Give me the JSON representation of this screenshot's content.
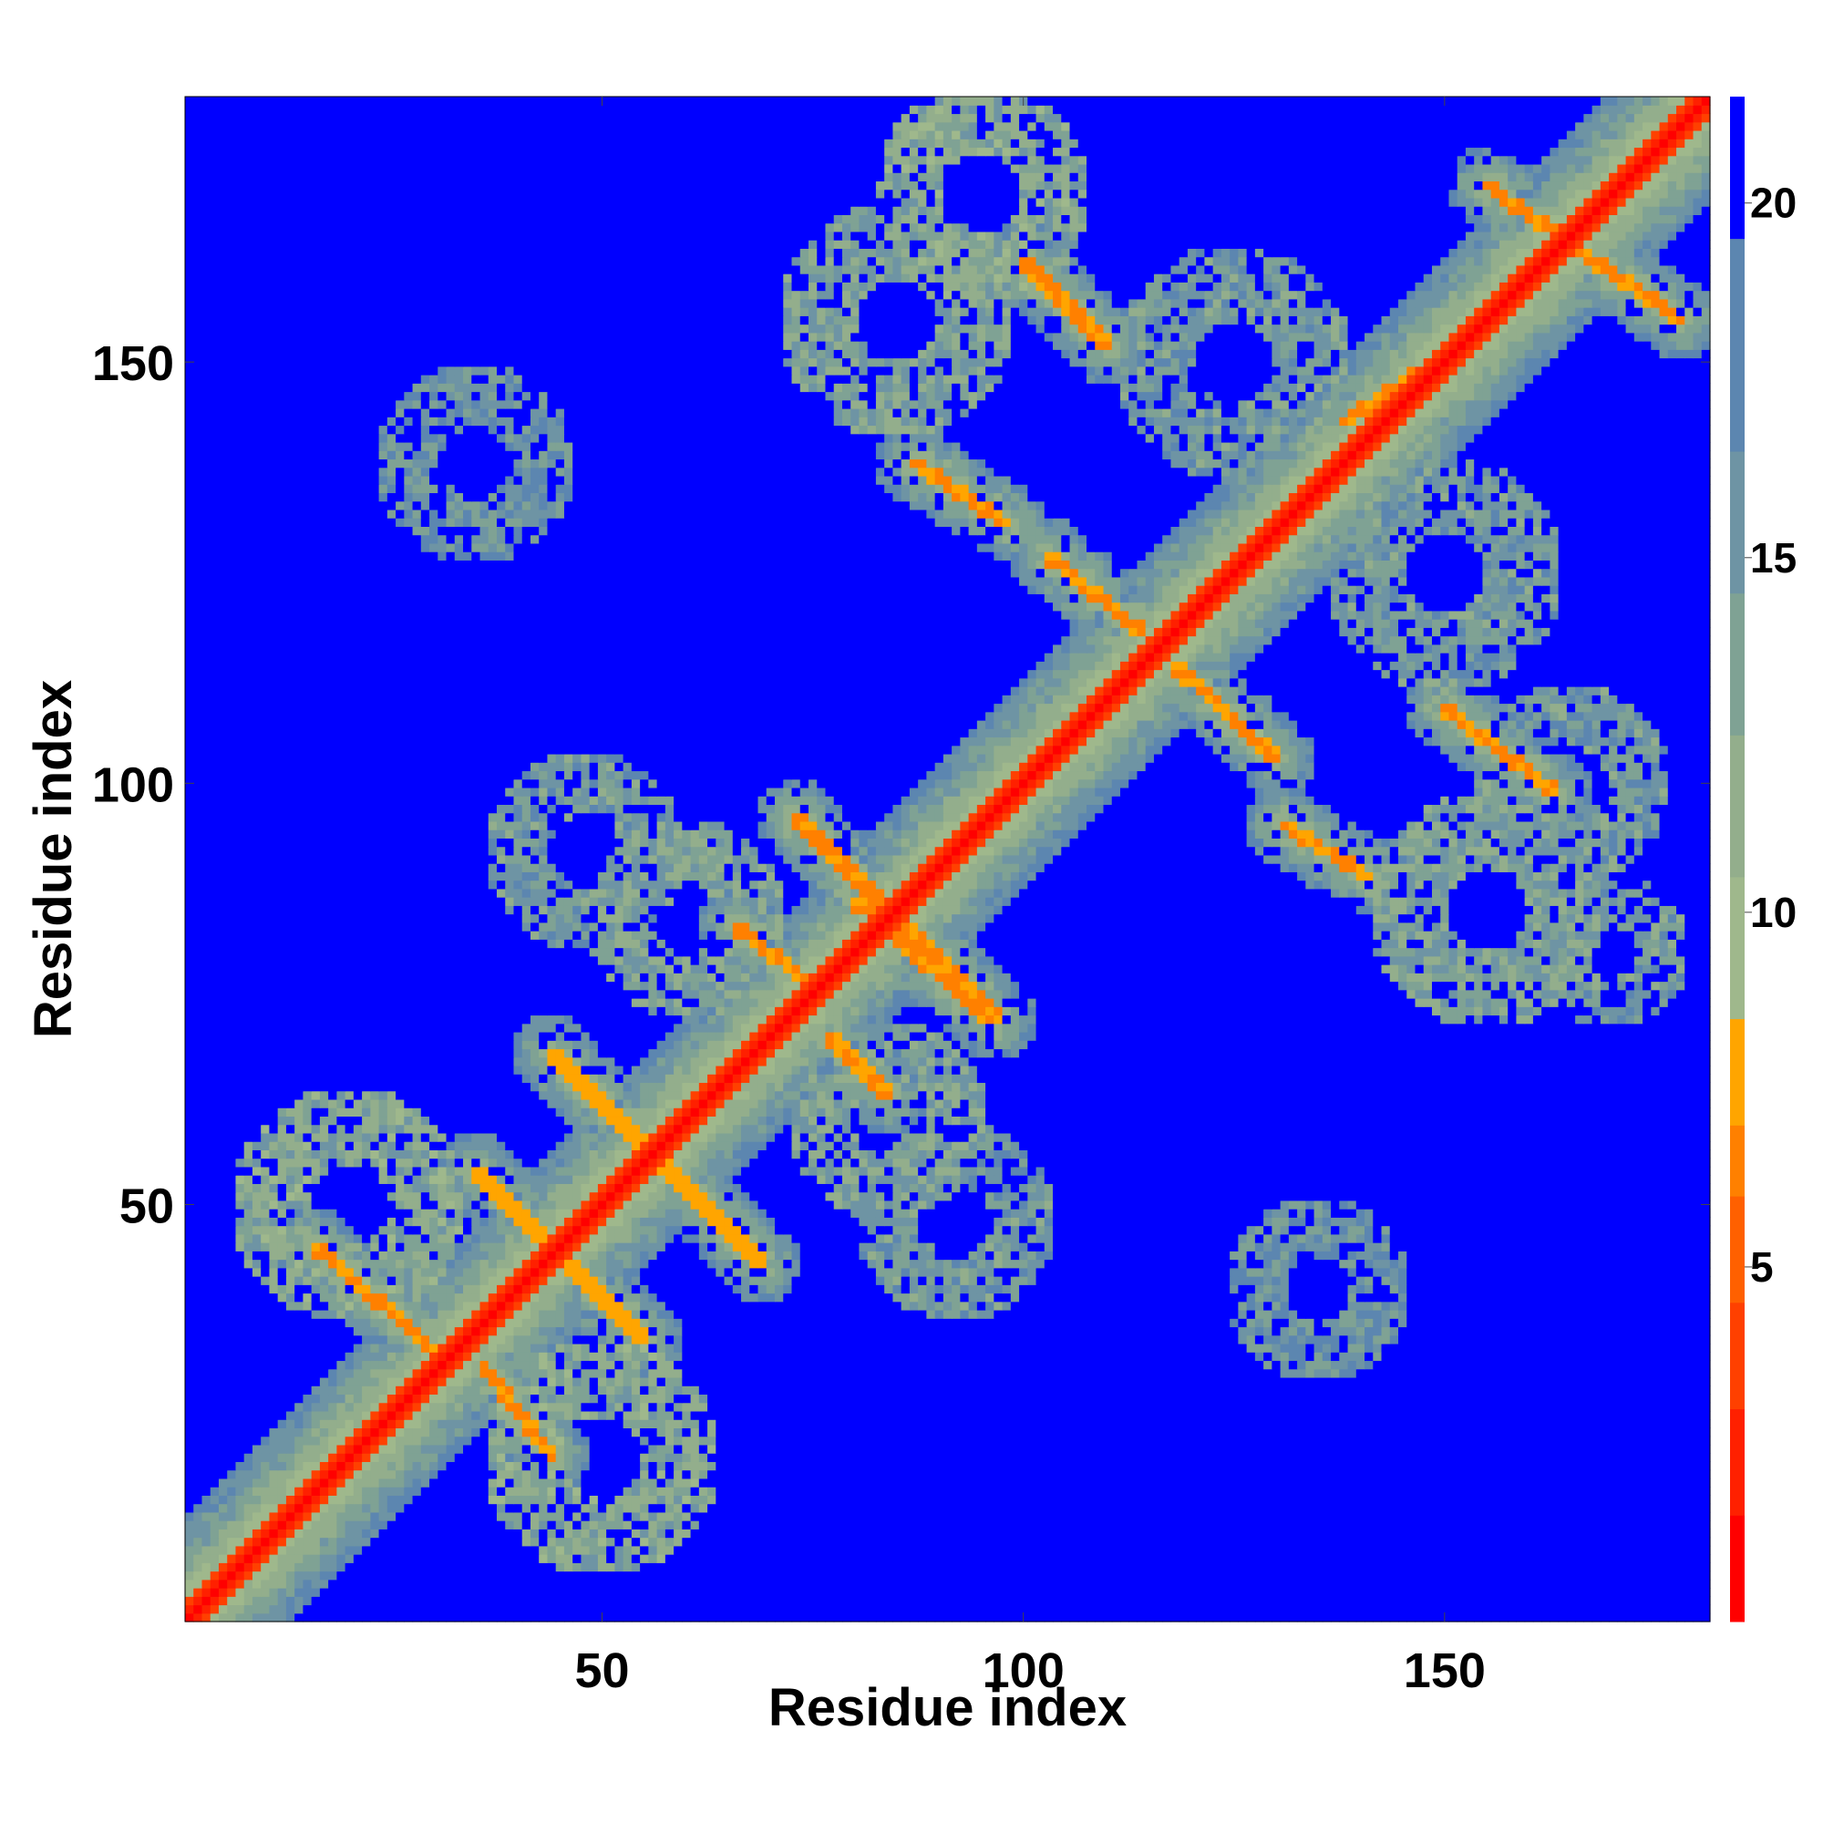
{
  "chart_data": {
    "type": "heatmap",
    "title": "",
    "xlabel": "Residue index",
    "ylabel": "Residue index",
    "x_range": [
      1,
      181
    ],
    "y_range": [
      1,
      181
    ],
    "x_ticks": [
      50,
      100,
      150
    ],
    "y_ticks": [
      50,
      100,
      150
    ],
    "colorbar": {
      "range": [
        0,
        21.5
      ],
      "ticks": [
        5,
        10,
        15,
        20
      ],
      "levels": [
        {
          "max": 1.5,
          "color": "#ff0000"
        },
        {
          "max": 3,
          "color": "#ff2000"
        },
        {
          "max": 4.5,
          "color": "#ff4000"
        },
        {
          "max": 6,
          "color": "#ff6000"
        },
        {
          "max": 7,
          "color": "#ff8000"
        },
        {
          "max": 8.5,
          "color": "#ffa500"
        },
        {
          "max": 10.5,
          "color": "#9fb88c"
        },
        {
          "max": 12.5,
          "color": "#93ae8c"
        },
        {
          "max": 14.5,
          "color": "#7fa294"
        },
        {
          "max": 16.5,
          "color": "#6e94a4"
        },
        {
          "max": 19.5,
          "color": "#5c86b0"
        },
        {
          "max": 21.5,
          "color": "#0000ff"
        }
      ]
    },
    "background_value": 21,
    "diagonal_band": {
      "width": 2.5,
      "value": 1
    },
    "contact_features": [
      {
        "type": "antidiagonal",
        "from": [
          35,
          54
        ],
        "to": [
          55,
          34
        ],
        "value": 7
      },
      {
        "type": "antidiagonal",
        "from": [
          44,
          68
        ],
        "to": [
          69,
          43
        ],
        "value": 7
      },
      {
        "type": "antidiagonal",
        "from": [
          16,
          45
        ],
        "to": [
          31,
          32
        ],
        "value": 6
      },
      {
        "type": "antidiagonal",
        "from": [
          36,
          31
        ],
        "to": [
          44,
          20
        ],
        "value": 6
      },
      {
        "type": "antidiagonal",
        "from": [
          73,
          96
        ],
        "to": [
          97,
          72
        ],
        "value": 6
      },
      {
        "type": "antidiagonal",
        "from": [
          80,
          86
        ],
        "to": [
          96,
          72
        ],
        "value": 6
      },
      {
        "type": "arc",
        "from": [
          66,
          83
        ],
        "to": [
          75,
          76
        ],
        "value": 6
      },
      {
        "type": "arc",
        "from": [
          77,
          70
        ],
        "to": [
          84,
          63
        ],
        "value": 6
      },
      {
        "type": "antidiagonal",
        "from": [
          87,
          138
        ],
        "to": [
          98,
          131
        ],
        "value": 6
      },
      {
        "type": "antidiagonal",
        "from": [
          100,
          162
        ],
        "to": [
          110,
          152
        ],
        "value": 6
      },
      {
        "type": "antidiagonal",
        "from": [
          103,
          127
        ],
        "to": [
          114,
          118
        ],
        "value": 6
      },
      {
        "type": "antidiagonal",
        "from": [
          118,
          114
        ],
        "to": [
          130,
          103
        ],
        "value": 6
      },
      {
        "type": "antidiagonal",
        "from": [
          131,
          95
        ],
        "to": [
          141,
          89
        ],
        "value": 6
      },
      {
        "type": "antidiagonal",
        "from": [
          150,
          109
        ],
        "to": [
          163,
          99
        ],
        "value": 6
      },
      {
        "type": "antidiagonal",
        "from": [
          155,
          171
        ],
        "to": [
          178,
          155
        ],
        "value": 6
      },
      {
        "type": "band",
        "from": [
          138,
          143
        ],
        "to": [
          152,
          152
        ],
        "value": 6
      },
      {
        "type": "blob",
        "center": [
          20,
          50
        ],
        "radius": 14,
        "value": 13
      },
      {
        "type": "blob",
        "center": [
          50,
          20
        ],
        "radius": 14,
        "value": 13
      },
      {
        "type": "blob",
        "center": [
          60,
          84
        ],
        "radius": 12,
        "value": 14
      },
      {
        "type": "blob",
        "center": [
          84,
          60
        ],
        "radius": 12,
        "value": 14
      },
      {
        "type": "blob",
        "center": [
          92,
          48
        ],
        "radius": 12,
        "value": 15
      },
      {
        "type": "blob",
        "center": [
          48,
          92
        ],
        "radius": 12,
        "value": 15
      },
      {
        "type": "blob",
        "center": [
          85,
          155
        ],
        "radius": 14,
        "value": 14
      },
      {
        "type": "blob",
        "center": [
          155,
          85
        ],
        "radius": 14,
        "value": 14
      },
      {
        "type": "blob",
        "center": [
          95,
          170
        ],
        "radius": 13,
        "value": 13
      },
      {
        "type": "blob",
        "center": [
          150,
          125
        ],
        "radius": 14,
        "value": 15
      },
      {
        "type": "blob",
        "center": [
          125,
          150
        ],
        "radius": 14,
        "value": 15
      },
      {
        "type": "blob",
        "center": [
          165,
          100
        ],
        "radius": 12,
        "value": 15
      },
      {
        "type": "blob",
        "center": [
          35,
          138
        ],
        "radius": 12,
        "value": 16
      },
      {
        "type": "blob",
        "center": [
          135,
          40
        ],
        "radius": 11,
        "value": 16
      },
      {
        "type": "blob",
        "center": [
          170,
          80
        ],
        "radius": 9,
        "value": 15
      }
    ]
  }
}
